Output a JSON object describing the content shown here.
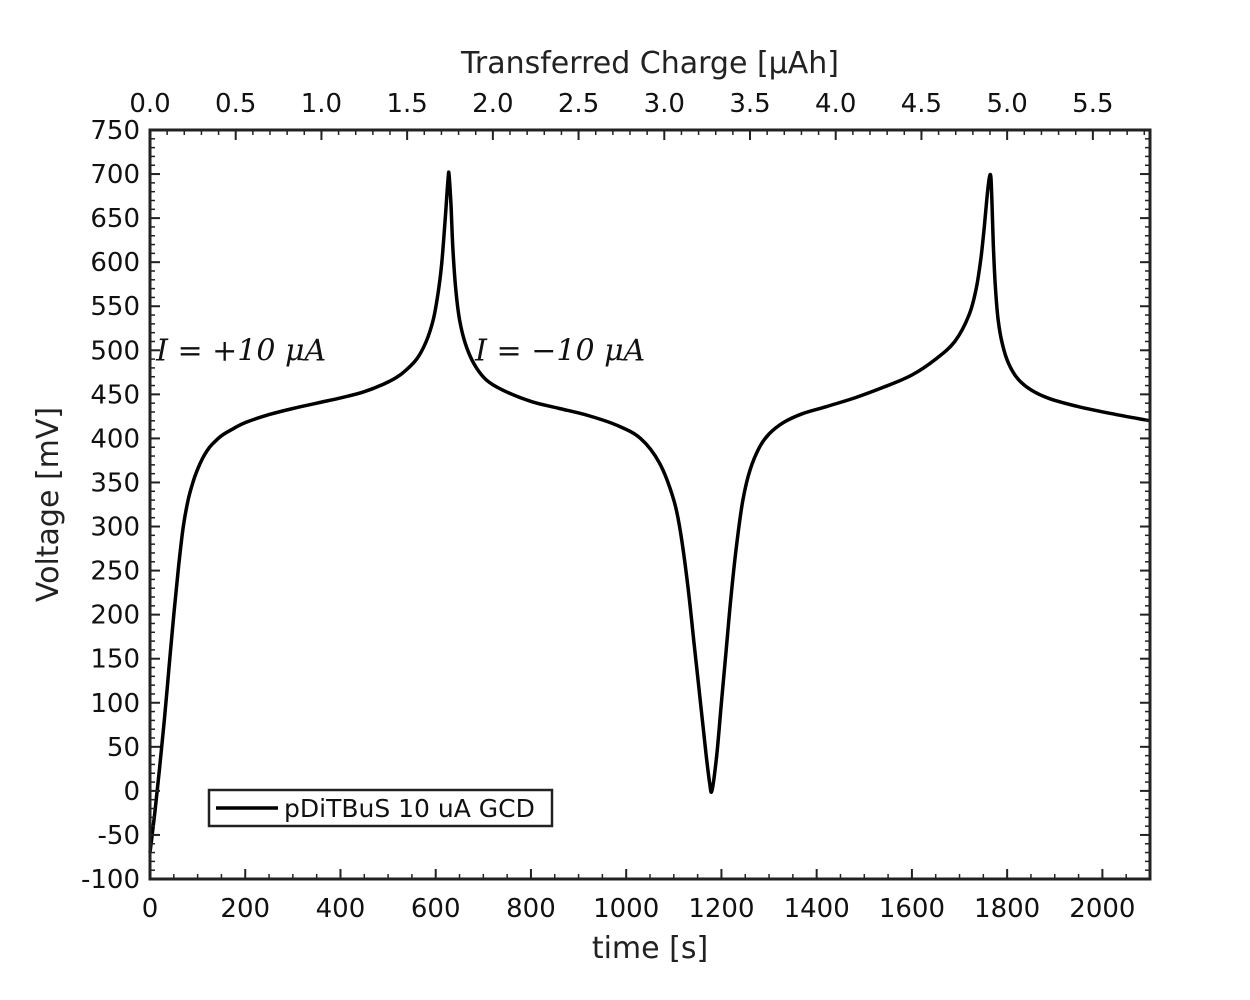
{
  "chart_data": {
    "type": "line",
    "xlabel": "time [s]",
    "x2label": "Transferred Charge [μAh]",
    "ylabel": "Voltage [mV]",
    "xlim": [
      0,
      2100
    ],
    "x2lim": [
      0,
      5.8333
    ],
    "ylim": [
      -100,
      750
    ],
    "x_ticks": [
      0,
      200,
      400,
      600,
      800,
      1000,
      1200,
      1400,
      1600,
      1800,
      2000
    ],
    "x_tick_labels": [
      "0",
      "200",
      "400",
      "600",
      "800",
      "1000",
      "1200",
      "1400",
      "1600",
      "1800",
      "2000"
    ],
    "x2_ticks": [
      0.0,
      0.5,
      1.0,
      1.5,
      2.0,
      2.5,
      3.0,
      3.5,
      4.0,
      4.5,
      5.0,
      5.5
    ],
    "x2_tick_labels": [
      "0.0",
      "0.5",
      "1.0",
      "1.5",
      "2.0",
      "2.5",
      "3.0",
      "3.5",
      "4.0",
      "4.5",
      "5.0",
      "5.5"
    ],
    "y_ticks": [
      -100,
      -50,
      0,
      50,
      100,
      150,
      200,
      250,
      300,
      350,
      400,
      450,
      500,
      550,
      600,
      650,
      700,
      750
    ],
    "y_tick_labels": [
      "-100",
      "-50",
      "0",
      "50",
      "100",
      "150",
      "200",
      "250",
      "300",
      "350",
      "400",
      "450",
      "500",
      "550",
      "600",
      "650",
      "700",
      "750"
    ],
    "grid": false,
    "legend_position": "bottom-left",
    "annotations": [
      {
        "text": "I = +10 μA",
        "x": 370,
        "y": 500
      },
      {
        "text": "I = −10 μA",
        "x": 1040,
        "y": 500
      }
    ],
    "series": [
      {
        "name": "pDiTBuS 10 uA GCD",
        "color": "#000000",
        "x": [
          0,
          10,
          20,
          30,
          40,
          50,
          60,
          70,
          80,
          90,
          100,
          110,
          120,
          130,
          150,
          175,
          200,
          250,
          300,
          350,
          400,
          450,
          500,
          530,
          560,
          580,
          595,
          605,
          612,
          618,
          622,
          626,
          628,
          632,
          636,
          642,
          650,
          662,
          680,
          705,
          740,
          800,
          860,
          920,
          980,
          1030,
          1070,
          1100,
          1115,
          1130,
          1142,
          1152,
          1160,
          1168,
          1175,
          1180,
          1190,
          1200,
          1210,
          1220,
          1232,
          1245,
          1260,
          1280,
          1300,
          1330,
          1370,
          1420,
          1480,
          1540,
          1600,
          1650,
          1690,
          1720,
          1735,
          1745,
          1752,
          1757,
          1761,
          1764,
          1766,
          1768,
          1771,
          1775,
          1781,
          1790,
          1803,
          1822,
          1850,
          1890,
          1950,
          2020,
          2100
        ],
        "y": [
          -70,
          -25,
          25,
          80,
          140,
          200,
          255,
          300,
          330,
          350,
          365,
          377,
          386,
          393,
          403,
          411,
          418,
          427,
          434,
          440,
          446,
          453,
          464,
          474,
          490,
          510,
          535,
          565,
          595,
          635,
          665,
          695,
          700,
          665,
          615,
          570,
          535,
          508,
          485,
          467,
          455,
          442,
          434,
          426,
          415,
          400,
          372,
          330,
          290,
          230,
          170,
          120,
          80,
          40,
          10,
          0,
          40,
          100,
          160,
          220,
          280,
          330,
          364,
          390,
          405,
          418,
          428,
          436,
          446,
          458,
          472,
          490,
          510,
          540,
          570,
          605,
          640,
          670,
          690,
          699,
          695,
          670,
          620,
          575,
          535,
          507,
          485,
          468,
          455,
          445,
          436,
          428,
          420
        ]
      }
    ]
  }
}
